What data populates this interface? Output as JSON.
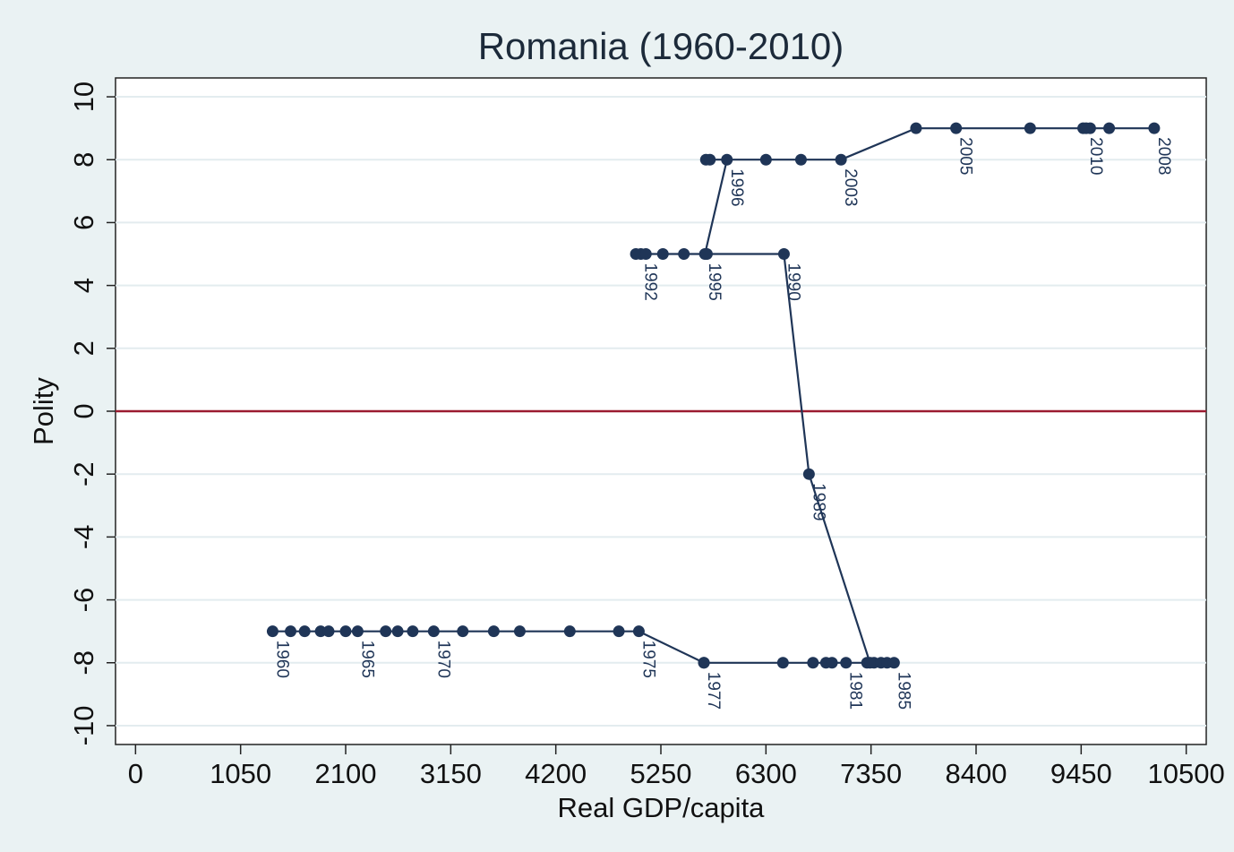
{
  "chart_data": {
    "type": "scatter",
    "title": "Romania (1960-2010)",
    "xlabel": "Real GDP/capita",
    "ylabel": "Polity",
    "xlim": [
      -200,
      10700
    ],
    "ylim": [
      -10.6,
      10.6
    ],
    "xticks": [
      0,
      1050,
      2100,
      3150,
      4200,
      5250,
      6300,
      7350,
      8400,
      9450,
      10500
    ],
    "yticks": [
      -10,
      -8,
      -6,
      -4,
      -2,
      0,
      2,
      4,
      6,
      8,
      10
    ],
    "grid": true,
    "reference_line": {
      "y": 0,
      "color": "#9b1b30"
    },
    "marker_color": "#1f3557",
    "line_color": "#1f3557",
    "series": [
      {
        "values": [
          {
            "x": 1370,
            "y": -7,
            "label": "1960"
          },
          {
            "x": 1550,
            "y": -7
          },
          {
            "x": 1690,
            "y": -7
          },
          {
            "x": 1850,
            "y": -7
          },
          {
            "x": 1930,
            "y": -7
          },
          {
            "x": 2100,
            "y": -7
          },
          {
            "x": 2220,
            "y": -7,
            "label": "1965"
          },
          {
            "x": 2500,
            "y": -7
          },
          {
            "x": 2620,
            "y": -7
          },
          {
            "x": 2770,
            "y": -7
          },
          {
            "x": 2980,
            "y": -7,
            "label": "1970"
          },
          {
            "x": 3270,
            "y": -7
          },
          {
            "x": 3580,
            "y": -7
          },
          {
            "x": 3840,
            "y": -7
          },
          {
            "x": 4340,
            "y": -7
          },
          {
            "x": 4830,
            "y": -7
          },
          {
            "x": 5030,
            "y": -7,
            "label": "1975"
          },
          {
            "x": 5680,
            "y": -8
          },
          {
            "x": 5680,
            "y": -8,
            "label": "1977"
          },
          {
            "x": 6470,
            "y": -8
          },
          {
            "x": 6770,
            "y": -8
          },
          {
            "x": 6900,
            "y": -8
          },
          {
            "x": 6960,
            "y": -8
          },
          {
            "x": 7100,
            "y": -8,
            "label": "1981"
          },
          {
            "x": 7310,
            "y": -8
          },
          {
            "x": 7380,
            "y": -8
          },
          {
            "x": 7450,
            "y": -8
          },
          {
            "x": 7510,
            "y": -8
          },
          {
            "x": 7580,
            "y": -8,
            "label": "1985"
          },
          {
            "x": 7340,
            "y": -8
          },
          {
            "x": 6730,
            "y": -2,
            "label": "1989"
          },
          {
            "x": 6480,
            "y": 5,
            "label": "1990"
          },
          {
            "x": 5710,
            "y": 5
          },
          {
            "x": 5480,
            "y": 5
          },
          {
            "x": 5270,
            "y": 5
          },
          {
            "x": 5050,
            "y": 5,
            "label": "1992"
          },
          {
            "x": 5000,
            "y": 5
          },
          {
            "x": 5100,
            "y": 5
          },
          {
            "x": 5690,
            "y": 5,
            "label": "1995"
          },
          {
            "x": 5910,
            "y": 8,
            "label": "1996"
          },
          {
            "x": 5700,
            "y": 8
          },
          {
            "x": 5740,
            "y": 8
          },
          {
            "x": 6300,
            "y": 8
          },
          {
            "x": 6650,
            "y": 8
          },
          {
            "x": 7050,
            "y": 8,
            "label": "2003"
          },
          {
            "x": 7800,
            "y": 9
          },
          {
            "x": 8200,
            "y": 9,
            "label": "2005"
          },
          {
            "x": 8940,
            "y": 9
          },
          {
            "x": 9470,
            "y": 9
          },
          {
            "x": 9730,
            "y": 9
          },
          {
            "x": 10180,
            "y": 9,
            "label": "2008"
          },
          {
            "x": 9540,
            "y": 9
          },
          {
            "x": 9500,
            "y": 9,
            "label": "2010"
          }
        ]
      }
    ]
  }
}
